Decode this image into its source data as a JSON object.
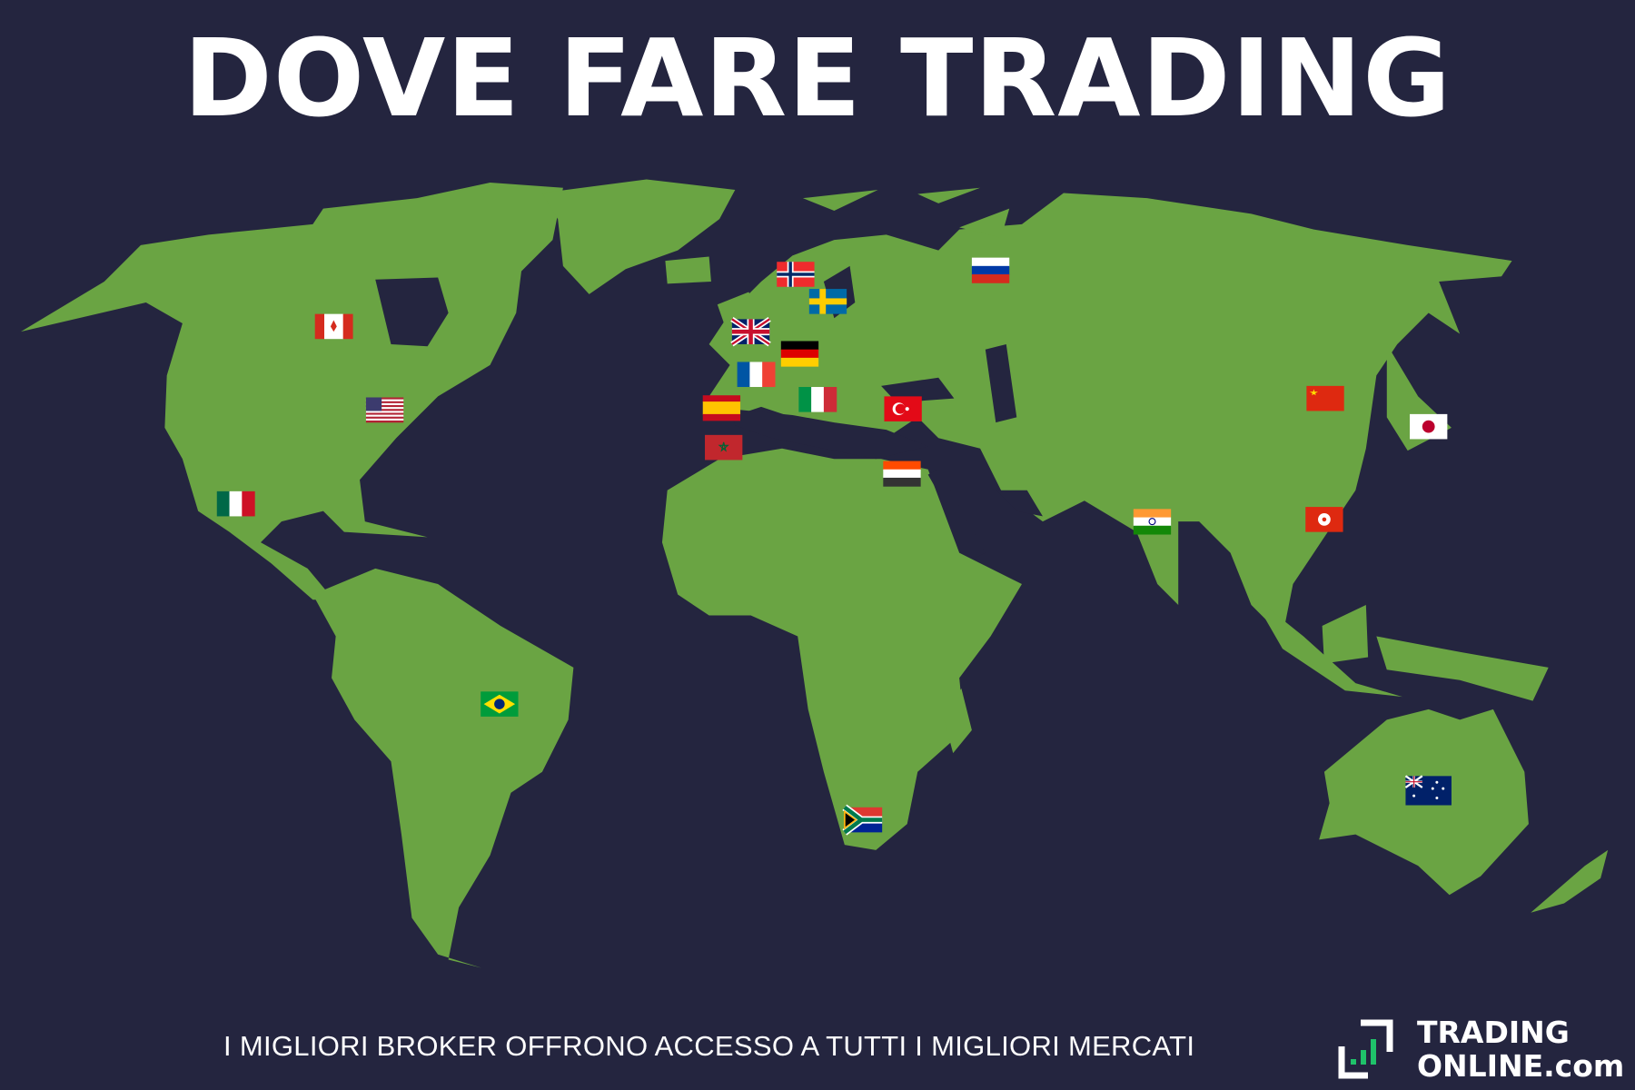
{
  "title": "DOVE FARE TRADING",
  "subtitle": "I MIGLIORI BROKER OFFRONO ACCESSO A TUTTI I MIGLIORI MERCATI",
  "logo": {
    "line1": "TRADING",
    "line2": "ONLINE.com"
  },
  "colors": {
    "background": "#24253f",
    "land": "#6aa443",
    "logo_accent": "#1fc26a",
    "text": "#ffffff"
  },
  "flags": [
    "canada-flag-icon",
    "usa-flag-icon",
    "mexico-flag-icon",
    "brazil-flag-icon",
    "norway-flag-icon",
    "sweden-flag-icon",
    "uk-flag-icon",
    "germany-flag-icon",
    "france-flag-icon",
    "spain-flag-icon",
    "italy-flag-icon",
    "morocco-flag-icon",
    "turkey-flag-icon",
    "egypt-flag-icon",
    "russia-flag-icon",
    "china-flag-icon",
    "japan-flag-icon",
    "india-flag-icon",
    "hong-kong-flag-icon",
    "south-africa-flag-icon",
    "australia-flag-icon"
  ]
}
